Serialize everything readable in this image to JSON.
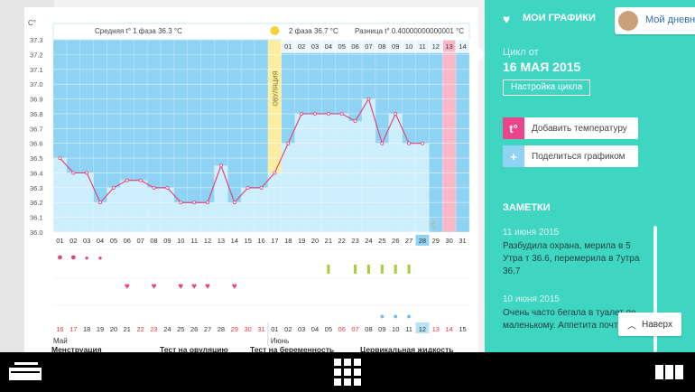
{
  "chart": {
    "unit_label": "С°",
    "phase1_label": "Средняя t° 1 фаза 36.3 °С",
    "phase2_label": "2 фаза 36.7 °С",
    "diff_label": "Разница t° 0.40000000000001 °С",
    "ovulation_label": "ОВУЛЯЦИЯ",
    "y_ticks": [
      "37.3",
      "37.2",
      "37.1",
      "37.0",
      "36.9",
      "36.8",
      "36.7",
      "36.6",
      "36.5",
      "36.4",
      "36.3",
      "36.2",
      "36.1",
      "36.0"
    ],
    "top_days": [
      "01",
      "02",
      "03",
      "04",
      "05",
      "06",
      "07",
      "08",
      "09",
      "10",
      "11",
      "12",
      "13",
      "14"
    ],
    "bottom_days": [
      "01",
      "02",
      "03",
      "04",
      "05",
      "06",
      "07",
      "08",
      "09",
      "10",
      "11",
      "12",
      "13",
      "14",
      "15",
      "16",
      "17",
      "18",
      "19",
      "20",
      "21",
      "22",
      "23",
      "24",
      "25",
      "26",
      "27",
      "28",
      "29",
      "30",
      "31"
    ],
    "highlight_day": "28",
    "date_row": [
      "16",
      "17",
      "18",
      "19",
      "20",
      "21",
      "22",
      "23",
      "24",
      "25",
      "26",
      "27",
      "28",
      "29",
      "30",
      "31",
      "01",
      "02",
      "03",
      "04",
      "05",
      "06",
      "07",
      "08",
      "09",
      "10",
      "11",
      "12",
      "13",
      "14",
      "15"
    ],
    "date_row_red": [
      "16",
      "17",
      "22",
      "23",
      "29",
      "30",
      "31",
      "06",
      "07",
      "13",
      "14"
    ],
    "month_may": "Май",
    "month_june": "Июнь",
    "legend": [
      "Менструация",
      "Тест на овуляцию",
      "Тест на беременность",
      "Цервикальная жидкость"
    ]
  },
  "chart_data": {
    "type": "line",
    "title": "",
    "x": [
      1,
      2,
      3,
      4,
      5,
      6,
      7,
      8,
      9,
      10,
      11,
      12,
      13,
      14,
      15,
      16,
      17,
      18,
      19,
      20,
      21,
      22,
      23,
      24,
      25,
      26,
      27,
      28
    ],
    "values": [
      36.5,
      36.4,
      36.4,
      36.2,
      36.3,
      36.35,
      36.35,
      36.3,
      36.3,
      36.2,
      36.2,
      36.2,
      36.45,
      36.2,
      36.3,
      36.3,
      36.4,
      36.6,
      36.8,
      36.8,
      36.8,
      36.8,
      36.75,
      36.9,
      36.6,
      36.8,
      36.6,
      36.6
    ],
    "ylim": [
      36.0,
      37.3
    ],
    "colors": {
      "line": "#e2457a",
      "bars": "#cdeefd",
      "upper": "#8fd3f4",
      "ovulation": "#fbeea0",
      "phase_alt": "#f9b8c9"
    }
  },
  "sidebar": {
    "title": "МОИ ГРАФИКИ",
    "cycle_label": "Цикл от",
    "cycle_date": "16 МАЯ 2015",
    "cycle_settings": "Настройка цикла",
    "add_temp": "Добавить температуру",
    "share": "Поделиться графиком",
    "notes_title": "ЗАМЕТКИ",
    "notes": [
      {
        "date": "11 июня 2015",
        "text": "Разбудила охрана, мерила в 5 Утра т 36.6, перемерила в 7утра 36,7"
      },
      {
        "date": "10 июня 2015",
        "text": "Очень часто бегала в туалет по маленькому. Аппетита почти"
      }
    ],
    "user": "Мой дневн",
    "back": "Наверх"
  }
}
